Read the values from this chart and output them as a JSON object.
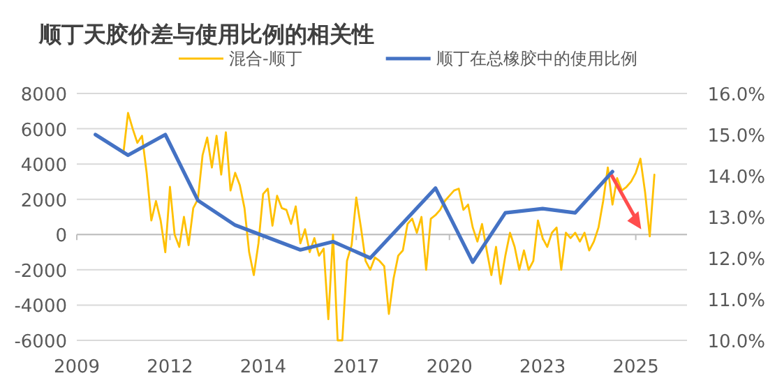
{
  "chart_data": {
    "type": "line",
    "title": "顺丁天胶价差与使用比例的相关性",
    "categories": [
      "2009",
      null,
      null,
      null,
      null,
      null,
      null,
      null,
      null,
      null,
      null,
      null,
      null,
      null,
      null,
      null,
      null,
      null,
      null,
      null,
      "2012",
      null,
      null,
      null,
      null,
      null,
      null,
      null,
      null,
      null,
      null,
      null,
      null,
      null,
      null,
      null,
      null,
      null,
      null,
      null,
      "2014",
      null,
      null,
      null,
      null,
      null,
      null,
      null,
      null,
      null,
      null,
      null,
      null,
      null,
      null,
      null,
      null,
      null,
      null,
      null,
      "2017",
      null,
      null,
      null,
      null,
      null,
      null,
      null,
      null,
      null,
      null,
      null,
      null,
      null,
      null,
      null,
      null,
      null,
      null,
      null,
      "2020",
      null,
      null,
      null,
      null,
      null,
      null,
      null,
      null,
      null,
      null,
      null,
      null,
      null,
      null,
      null,
      null,
      null,
      null,
      null,
      "2023",
      null,
      null,
      null,
      null,
      null,
      null,
      null,
      null,
      null,
      null,
      null,
      null,
      null,
      null,
      null,
      null,
      null,
      null,
      null,
      "2025",
      null,
      null,
      null,
      null,
      null,
      null,
      null,
      null,
      null,
      null
    ],
    "series": [
      {
        "name": "混合-顺丁",
        "color": "#ffc000",
        "values": [
          null,
          null,
          null,
          null,
          null,
          null,
          null,
          null,
          null,
          null,
          4600,
          6900,
          6000,
          5200,
          5600,
          3500,
          800,
          1900,
          800,
          -1000,
          2700,
          0,
          -700,
          1000,
          -600,
          1500,
          2000,
          4500,
          5500,
          3800,
          5600,
          3400,
          5800,
          2500,
          3500,
          2800,
          1500,
          -1000,
          -2300,
          -500,
          2300,
          2600,
          500,
          2200,
          1500,
          1400,
          600,
          1600,
          -500,
          300,
          -1000,
          -200,
          -1200,
          -800,
          -4800,
          0,
          -6000,
          -6000,
          -1500,
          -600,
          2100,
          400,
          -1500,
          -2000,
          -1300,
          -1500,
          -1800,
          -4500,
          -2500,
          -1200,
          -900,
          600,
          900,
          100,
          1000,
          -2000,
          900,
          1100,
          1400,
          1900,
          2200,
          2500,
          2600,
          1400,
          1700,
          400,
          -400,
          600,
          -900,
          -2300,
          -700,
          -2800,
          -1200,
          100,
          -700,
          -2000,
          -900,
          -2000,
          -1500,
          800,
          -200,
          -700,
          100,
          400,
          -2000,
          100,
          -200,
          100,
          -400,
          100,
          -900,
          -400,
          400,
          1900,
          3800,
          1700,
          3200,
          2500,
          2700,
          3000,
          3500,
          4300,
          2400,
          -100,
          3400,
          null,
          null,
          null,
          null,
          null,
          null
        ]
      },
      {
        "name": "顺丁在总橡胶中的使用比例",
        "color": "#4472c4",
        "axis": "y2",
        "values": [
          null,
          null,
          null,
          null,
          15.0,
          null,
          null,
          null,
          null,
          null,
          null,
          14.5,
          null,
          null,
          null,
          null,
          null,
          null,
          null,
          15.0,
          null,
          null,
          null,
          null,
          null,
          null,
          13.4,
          null,
          null,
          null,
          null,
          null,
          null,
          null,
          12.8,
          null,
          null,
          null,
          null,
          null,
          null,
          null,
          null,
          null,
          null,
          null,
          null,
          null,
          12.2,
          null,
          null,
          null,
          null,
          null,
          null,
          12.4,
          null,
          null,
          null,
          null,
          null,
          null,
          null,
          12.0,
          null,
          null,
          null,
          null,
          null,
          null,
          null,
          null,
          null,
          null,
          null,
          null,
          null,
          13.7,
          null,
          null,
          null,
          null,
          null,
          null,
          null,
          11.9,
          null,
          null,
          null,
          null,
          null,
          null,
          13.1,
          null,
          null,
          null,
          null,
          null,
          null,
          null,
          13.2,
          null,
          null,
          null,
          null,
          null,
          null,
          13.1,
          null,
          null,
          null,
          null,
          null,
          null,
          null,
          14.1,
          null,
          null,
          null,
          null,
          null,
          null,
          null,
          null,
          null,
          null,
          null,
          null,
          null,
          null,
          null
        ]
      }
    ],
    "ylim": [
      -6000,
      8000
    ],
    "yticks": [
      -6000,
      -4000,
      -2000,
      0,
      2000,
      4000,
      6000,
      8000
    ],
    "y2lim": [
      10,
      16
    ],
    "y2ticks": [
      {
        "value": 10,
        "label": "10.0%"
      },
      {
        "value": 11,
        "label": "11.0%"
      },
      {
        "value": 12,
        "label": "12.0%"
      },
      {
        "value": 13,
        "label": "13.0%"
      },
      {
        "value": 14,
        "label": "14.0%"
      },
      {
        "value": 15,
        "label": "15.0%"
      },
      {
        "value": 16,
        "label": "16.0%"
      }
    ],
    "grid": "y",
    "legend": "top"
  }
}
